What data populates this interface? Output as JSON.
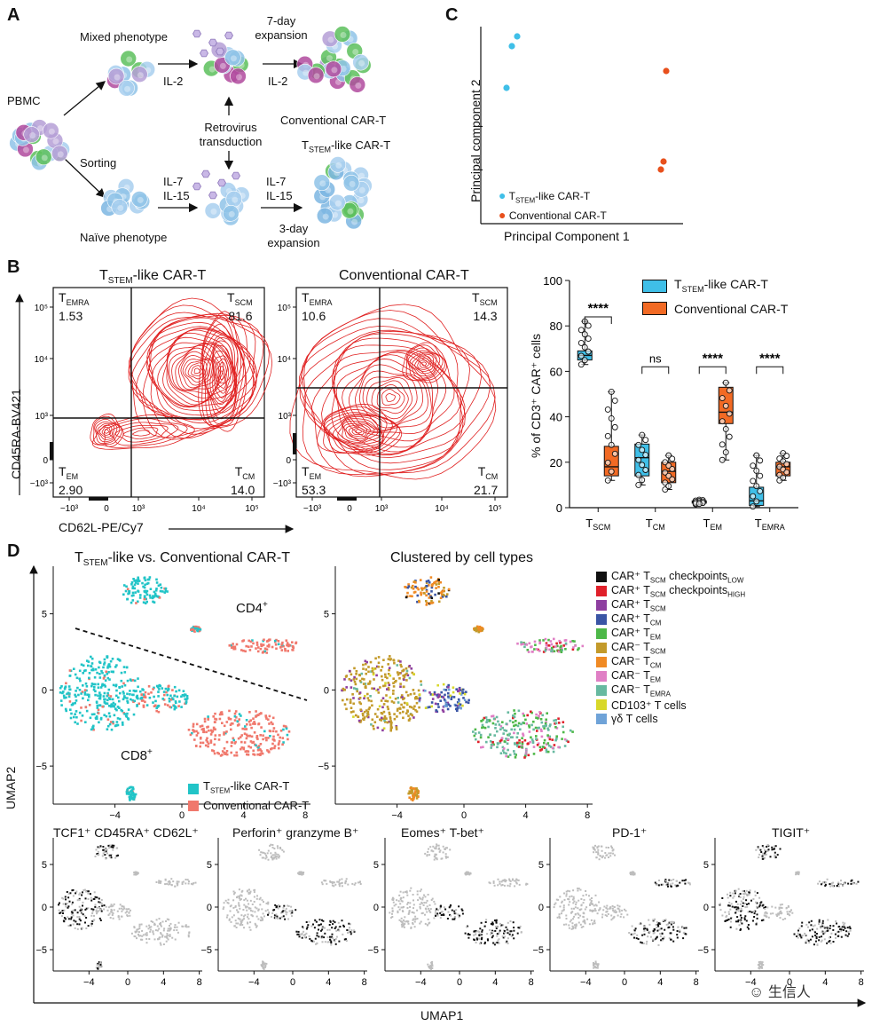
{
  "panelA": {
    "label": "A",
    "pbmc": "PBMC",
    "mixed": "Mixed phenotype",
    "sorting": "Sorting",
    "naive": "Naïve phenotype",
    "il2_a": "IL-2",
    "il2_b": "IL-2",
    "il7_a": "IL-7",
    "il15_a": "IL-15",
    "il7_b": "IL-7",
    "il15_b": "IL-15",
    "expansion7_l1": "7-day",
    "expansion7_l2": "expansion",
    "retro_l1": "Retrovirus",
    "retro_l2": "transduction",
    "conventional": "Conventional CAR-T",
    "tstem_main": "T",
    "tstem_sub": "STEM",
    "tstem_rest": "-like CAR-T",
    "expansion3_l1": "3-day",
    "expansion3_l2": "expansion"
  },
  "panelC": {
    "label": "C",
    "xlabel": "Principal Component 1",
    "ylabel": "Principal component 2",
    "legend_stem_main": "T",
    "legend_stem_sub": "STEM",
    "legend_stem_rest": "-like CAR-T",
    "legend_conv": "Conventional CAR-T"
  },
  "panelB": {
    "label": "B",
    "flow1_title_main": "T",
    "flow1_title_sub": "STEM",
    "flow1_title_rest": "-like CAR-T",
    "flow2_title": "Conventional CAR-T",
    "ylabel": "CD45RA-BV421",
    "xlabel": "CD62L-PE/Cy7",
    "q_emra": "EMRA",
    "q_scm": "SCM",
    "q_em": "EM",
    "q_cm": "CM",
    "flow1": {
      "emra": "1.53",
      "scm": "81.6",
      "em": "2.90",
      "cm": "14.0"
    },
    "flow2": {
      "emra": "10.6",
      "scm": "14.3",
      "em": "53.3",
      "cm": "21.7"
    },
    "ticks_y": [
      "10⁵",
      "10⁴",
      "10³",
      "0",
      "−10³"
    ],
    "ticks_x": [
      "−10³",
      "0",
      "10³",
      "10⁴",
      "10⁵"
    ],
    "box_ylabel": "% of CD3⁺ CAR⁺ cells",
    "box_legend_stem_main": "T",
    "box_legend_stem_sub": "STEM",
    "box_legend_stem_rest": "-like CAR-T",
    "box_legend_conv": "Conventional CAR-T",
    "sig": [
      "****",
      "ns",
      "****",
      "****"
    ]
  },
  "chart_data": {
    "type": "box",
    "categories": [
      "TSCM",
      "TCM",
      "TEM",
      "TEMRA"
    ],
    "ylabel": "% of CD3⁺ CAR⁺ cells",
    "ylim": [
      0,
      100
    ],
    "yticks": [
      0,
      20,
      40,
      60,
      80,
      100
    ],
    "series": [
      {
        "name": "TSTEM-like CAR-T",
        "color": "#3fbfe8",
        "boxes": [
          {
            "min": 63,
            "q1": 65,
            "median": 67,
            "q3": 69,
            "max": 82
          },
          {
            "min": 10,
            "q1": 14,
            "median": 22,
            "q3": 28,
            "max": 32
          },
          {
            "min": 1.5,
            "q1": 2,
            "median": 2.5,
            "q3": 3,
            "max": 3.5
          },
          {
            "min": 0.5,
            "q1": 1,
            "median": 3,
            "q3": 9,
            "max": 23
          }
        ]
      },
      {
        "name": "Conventional CAR-T",
        "color": "#f26a24",
        "boxes": [
          {
            "min": 12,
            "q1": 14,
            "median": 18,
            "q3": 27,
            "max": 51
          },
          {
            "min": 8,
            "q1": 11,
            "median": 16,
            "q3": 20,
            "max": 23
          },
          {
            "min": 21,
            "q1": 37,
            "median": 42,
            "q3": 53,
            "max": 55
          },
          {
            "min": 12,
            "q1": 14,
            "median": 18,
            "q3": 20,
            "max": 24
          }
        ]
      }
    ],
    "significance": [
      "****",
      "ns",
      "****",
      "****"
    ]
  },
  "panelD": {
    "label": "D",
    "umap1_title_main": "T",
    "umap1_title_sub": "STEM",
    "umap1_title_rest": "-like vs. Conventional CAR-T",
    "umap2_title": "Clustered by cell types",
    "cd4": "CD4",
    "cd8": "CD8",
    "legend_stem_main": "T",
    "legend_stem_sub": "STEM",
    "legend_stem_rest": "-like CAR-T",
    "legend_conv": "Conventional CAR-T",
    "ylabel": "UMAP2",
    "xlabel": "UMAP1",
    "yticks": [
      "5",
      "0",
      "−5"
    ],
    "xticks": [
      "−4",
      "0",
      "4",
      "8"
    ],
    "clusters": [
      {
        "color": "#111111",
        "pre": "CAR⁺ T",
        "sub": "SCM",
        "post": " checkpoints",
        "post_sub": "LOW"
      },
      {
        "color": "#e0202a",
        "pre": "CAR⁺ T",
        "sub": "SCM",
        "post": " checkpoints",
        "post_sub": "HIGH"
      },
      {
        "color": "#8e3fa0",
        "pre": "CAR⁺ T",
        "sub": "SCM",
        "post": "",
        "post_sub": ""
      },
      {
        "color": "#3a55a5",
        "pre": "CAR⁺ T",
        "sub": "CM",
        "post": "",
        "post_sub": ""
      },
      {
        "color": "#4db848",
        "pre": "CAR⁺ T",
        "sub": "EM",
        "post": "",
        "post_sub": ""
      },
      {
        "color": "#c39a2a",
        "pre": "CAR⁻ T",
        "sub": "SCM",
        "post": "",
        "post_sub": ""
      },
      {
        "color": "#f08a24",
        "pre": "CAR⁻ T",
        "sub": "CM",
        "post": "",
        "post_sub": ""
      },
      {
        "color": "#e07fc5",
        "pre": "CAR⁻ T",
        "sub": "EM",
        "post": "",
        "post_sub": ""
      },
      {
        "color": "#67b9a0",
        "pre": "CAR⁻ T",
        "sub": "EMRA",
        "post": "",
        "post_sub": ""
      },
      {
        "color": "#d8d82a",
        "pre": "CD103⁺ T cells",
        "sub": "",
        "post": "",
        "post_sub": ""
      },
      {
        "color": "#6fa3d8",
        "pre": "γδ T cells",
        "sub": "",
        "post": "",
        "post_sub": ""
      }
    ],
    "mini_titles": [
      "TCF1⁺ CD45RA⁺ CD62L⁺",
      "Perforin⁺ granzyme B⁺",
      "Eomes⁺ T-bet⁺",
      "PD-1⁺",
      "TIGIT⁺"
    ],
    "watermark": "生信人"
  },
  "colors": {
    "stem": "#21c4c7",
    "conv": "#f0786c",
    "contour": "#e02020",
    "stem_dot": "#3fbfe8",
    "conv_dot": "#e8501c"
  }
}
